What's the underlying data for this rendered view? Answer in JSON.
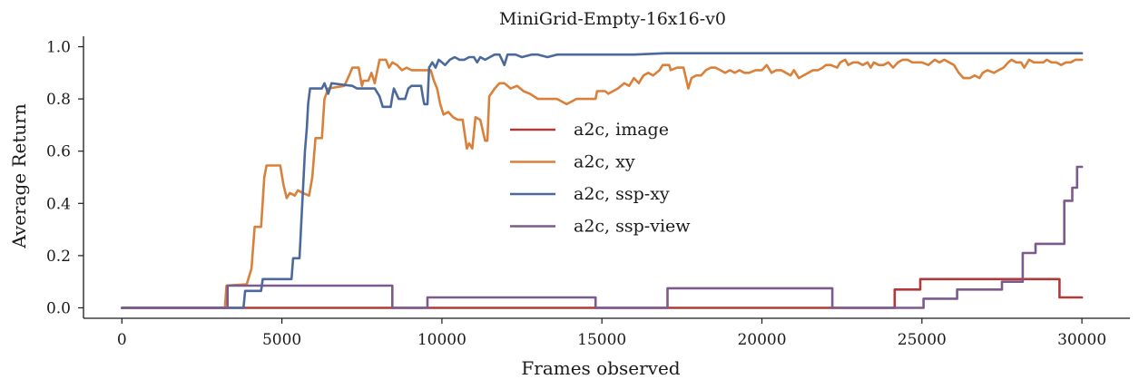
{
  "chart_data": {
    "type": "line",
    "title": "MiniGrid-Empty-16x16-v0",
    "xlabel": "Frames observed",
    "ylabel": "Average Return",
    "xlim": [
      -1200,
      31500
    ],
    "ylim": [
      -0.04,
      1.04
    ],
    "xticks": [
      0,
      5000,
      10000,
      15000,
      20000,
      25000,
      30000
    ],
    "xtick_labels": [
      "0",
      "5000",
      "10000",
      "15000",
      "20000",
      "25000",
      "30000"
    ],
    "yticks": [
      0.0,
      0.2,
      0.4,
      0.6,
      0.8,
      1.0
    ],
    "ytick_labels": [
      "0.0",
      "0.2",
      "0.4",
      "0.6",
      "0.8",
      "1.0"
    ],
    "grid": false,
    "legend_position": "center",
    "series": [
      {
        "name": "a2c, image",
        "color": "#b03a3a",
        "step": true,
        "points": [
          [
            0,
            0.0
          ],
          [
            24150,
            0.0
          ],
          [
            24150,
            0.07
          ],
          [
            24950,
            0.07
          ],
          [
            24950,
            0.11
          ],
          [
            29300,
            0.11
          ],
          [
            29300,
            0.04
          ],
          [
            30000,
            0.04
          ]
        ]
      },
      {
        "name": "a2c, xy",
        "color": "#d9803a",
        "step": false,
        "points": [
          [
            0,
            0.0
          ],
          [
            3220,
            0.0
          ],
          [
            3270,
            0.085
          ],
          [
            3900,
            0.09
          ],
          [
            4050,
            0.15
          ],
          [
            4150,
            0.31
          ],
          [
            4350,
            0.31
          ],
          [
            4450,
            0.5
          ],
          [
            4520,
            0.545
          ],
          [
            4950,
            0.545
          ],
          [
            5050,
            0.47
          ],
          [
            5150,
            0.42
          ],
          [
            5250,
            0.44
          ],
          [
            5400,
            0.43
          ],
          [
            5500,
            0.45
          ],
          [
            5650,
            0.44
          ],
          [
            5850,
            0.43
          ],
          [
            5950,
            0.5
          ],
          [
            6050,
            0.65
          ],
          [
            6250,
            0.65
          ],
          [
            6330,
            0.8
          ],
          [
            6450,
            0.84
          ],
          [
            6950,
            0.85
          ],
          [
            7100,
            0.89
          ],
          [
            7200,
            0.92
          ],
          [
            7400,
            0.92
          ],
          [
            7500,
            0.85
          ],
          [
            7550,
            0.87
          ],
          [
            7700,
            0.87
          ],
          [
            7800,
            0.9
          ],
          [
            7900,
            0.86
          ],
          [
            8050,
            0.95
          ],
          [
            8250,
            0.95
          ],
          [
            8350,
            0.92
          ],
          [
            8450,
            0.94
          ],
          [
            8600,
            0.93
          ],
          [
            8750,
            0.91
          ],
          [
            8900,
            0.92
          ],
          [
            9050,
            0.91
          ],
          [
            9350,
            0.91
          ],
          [
            9500,
            0.91
          ],
          [
            9650,
            0.91
          ],
          [
            9750,
            0.87
          ],
          [
            9850,
            0.84
          ],
          [
            9950,
            0.78
          ],
          [
            10050,
            0.74
          ],
          [
            10200,
            0.75
          ],
          [
            10350,
            0.73
          ],
          [
            10500,
            0.72
          ],
          [
            10650,
            0.72
          ],
          [
            10780,
            0.61
          ],
          [
            10850,
            0.63
          ],
          [
            10950,
            0.61
          ],
          [
            11050,
            0.73
          ],
          [
            11200,
            0.72
          ],
          [
            11350,
            0.64
          ],
          [
            11420,
            0.64
          ],
          [
            11480,
            0.81
          ],
          [
            11650,
            0.84
          ],
          [
            11800,
            0.86
          ],
          [
            11950,
            0.86
          ],
          [
            12150,
            0.84
          ],
          [
            12350,
            0.85
          ],
          [
            12550,
            0.83
          ],
          [
            12750,
            0.82
          ],
          [
            13000,
            0.8
          ],
          [
            13350,
            0.8
          ],
          [
            13600,
            0.8
          ],
          [
            13900,
            0.78
          ],
          [
            14200,
            0.8
          ],
          [
            14500,
            0.8
          ],
          [
            14800,
            0.8
          ],
          [
            14850,
            0.83
          ],
          [
            15100,
            0.83
          ],
          [
            15200,
            0.82
          ],
          [
            15500,
            0.84
          ],
          [
            15700,
            0.86
          ],
          [
            15850,
            0.85
          ],
          [
            16000,
            0.88
          ],
          [
            16150,
            0.86
          ],
          [
            16300,
            0.89
          ],
          [
            16450,
            0.9
          ],
          [
            16600,
            0.89
          ],
          [
            16800,
            0.91
          ],
          [
            16900,
            0.93
          ],
          [
            17100,
            0.93
          ],
          [
            17150,
            0.91
          ],
          [
            17350,
            0.92
          ],
          [
            17550,
            0.92
          ],
          [
            17700,
            0.84
          ],
          [
            17800,
            0.88
          ],
          [
            17950,
            0.89
          ],
          [
            18100,
            0.89
          ],
          [
            18250,
            0.91
          ],
          [
            18400,
            0.92
          ],
          [
            18550,
            0.92
          ],
          [
            18700,
            0.91
          ],
          [
            18850,
            0.9
          ],
          [
            19000,
            0.91
          ],
          [
            19150,
            0.9
          ],
          [
            19300,
            0.91
          ],
          [
            19450,
            0.9
          ],
          [
            19600,
            0.9
          ],
          [
            19800,
            0.91
          ],
          [
            20000,
            0.91
          ],
          [
            20150,
            0.93
          ],
          [
            20300,
            0.9
          ],
          [
            20450,
            0.91
          ],
          [
            20600,
            0.91
          ],
          [
            20750,
            0.9
          ],
          [
            20900,
            0.89
          ],
          [
            21000,
            0.91
          ],
          [
            21150,
            0.88
          ],
          [
            21300,
            0.89
          ],
          [
            21450,
            0.9
          ],
          [
            21600,
            0.91
          ],
          [
            21750,
            0.91
          ],
          [
            21900,
            0.92
          ],
          [
            22000,
            0.93
          ],
          [
            22150,
            0.93
          ],
          [
            22350,
            0.92
          ],
          [
            22450,
            0.94
          ],
          [
            22600,
            0.95
          ],
          [
            22700,
            0.93
          ],
          [
            22850,
            0.94
          ],
          [
            23000,
            0.94
          ],
          [
            23150,
            0.93
          ],
          [
            23300,
            0.94
          ],
          [
            23400,
            0.92
          ],
          [
            23500,
            0.94
          ],
          [
            23650,
            0.93
          ],
          [
            23800,
            0.93
          ],
          [
            23950,
            0.94
          ],
          [
            24100,
            0.92
          ],
          [
            24250,
            0.94
          ],
          [
            24400,
            0.95
          ],
          [
            24550,
            0.95
          ],
          [
            24700,
            0.94
          ],
          [
            24850,
            0.94
          ],
          [
            25000,
            0.94
          ],
          [
            25200,
            0.93
          ],
          [
            25400,
            0.95
          ],
          [
            25550,
            0.94
          ],
          [
            25700,
            0.95
          ],
          [
            25850,
            0.94
          ],
          [
            26000,
            0.93
          ],
          [
            26150,
            0.9
          ],
          [
            26300,
            0.88
          ],
          [
            26500,
            0.88
          ],
          [
            26650,
            0.89
          ],
          [
            26800,
            0.88
          ],
          [
            26900,
            0.9
          ],
          [
            27050,
            0.91
          ],
          [
            27250,
            0.9
          ],
          [
            27400,
            0.91
          ],
          [
            27550,
            0.92
          ],
          [
            27700,
            0.94
          ],
          [
            27800,
            0.95
          ],
          [
            27950,
            0.94
          ],
          [
            28100,
            0.94
          ],
          [
            28200,
            0.92
          ],
          [
            28350,
            0.95
          ],
          [
            28500,
            0.94
          ],
          [
            28650,
            0.94
          ],
          [
            28800,
            0.94
          ],
          [
            28900,
            0.95
          ],
          [
            29050,
            0.94
          ],
          [
            29200,
            0.94
          ],
          [
            29350,
            0.93
          ],
          [
            29500,
            0.94
          ],
          [
            29650,
            0.94
          ],
          [
            29800,
            0.95
          ],
          [
            30000,
            0.95
          ]
        ]
      },
      {
        "name": "a2c, ssp-xy",
        "color": "#4b6a9b",
        "step": false,
        "points": [
          [
            0,
            0.0
          ],
          [
            3800,
            0.0
          ],
          [
            3850,
            0.065
          ],
          [
            4350,
            0.065
          ],
          [
            4400,
            0.11
          ],
          [
            5300,
            0.11
          ],
          [
            5350,
            0.19
          ],
          [
            5550,
            0.19
          ],
          [
            5650,
            0.43
          ],
          [
            5720,
            0.6
          ],
          [
            5780,
            0.69
          ],
          [
            5820,
            0.78
          ],
          [
            5880,
            0.84
          ],
          [
            6250,
            0.84
          ],
          [
            6330,
            0.86
          ],
          [
            6450,
            0.82
          ],
          [
            6550,
            0.86
          ],
          [
            7200,
            0.85
          ],
          [
            7350,
            0.84
          ],
          [
            7900,
            0.84
          ],
          [
            8050,
            0.81
          ],
          [
            8150,
            0.77
          ],
          [
            8400,
            0.77
          ],
          [
            8450,
            0.81
          ],
          [
            8500,
            0.84
          ],
          [
            8650,
            0.8
          ],
          [
            8850,
            0.8
          ],
          [
            8950,
            0.84
          ],
          [
            9050,
            0.85
          ],
          [
            9350,
            0.85
          ],
          [
            9400,
            0.81
          ],
          [
            9450,
            0.78
          ],
          [
            9550,
            0.78
          ],
          [
            9600,
            0.92
          ],
          [
            9700,
            0.94
          ],
          [
            9800,
            0.92
          ],
          [
            9900,
            0.95
          ],
          [
            10000,
            0.94
          ],
          [
            10100,
            0.93
          ],
          [
            10250,
            0.95
          ],
          [
            10400,
            0.96
          ],
          [
            10550,
            0.95
          ],
          [
            10700,
            0.95
          ],
          [
            10850,
            0.96
          ],
          [
            11000,
            0.96
          ],
          [
            11100,
            0.94
          ],
          [
            11200,
            0.96
          ],
          [
            11350,
            0.95
          ],
          [
            11500,
            0.96
          ],
          [
            11650,
            0.97
          ],
          [
            11800,
            0.97
          ],
          [
            11950,
            0.93
          ],
          [
            12050,
            0.97
          ],
          [
            12300,
            0.97
          ],
          [
            12500,
            0.96
          ],
          [
            12800,
            0.97
          ],
          [
            13000,
            0.97
          ],
          [
            13300,
            0.96
          ],
          [
            13600,
            0.97
          ],
          [
            14000,
            0.97
          ],
          [
            14500,
            0.97
          ],
          [
            15000,
            0.97
          ],
          [
            15500,
            0.97
          ],
          [
            16000,
            0.97
          ],
          [
            17000,
            0.975
          ],
          [
            18000,
            0.975
          ],
          [
            19000,
            0.975
          ],
          [
            20000,
            0.975
          ],
          [
            22000,
            0.975
          ],
          [
            24000,
            0.975
          ],
          [
            26000,
            0.975
          ],
          [
            28000,
            0.975
          ],
          [
            30000,
            0.975
          ]
        ]
      },
      {
        "name": "a2c, ssp-view",
        "color": "#7d5a8c",
        "step": true,
        "points": [
          [
            0,
            0.0
          ],
          [
            3300,
            0.0
          ],
          [
            3300,
            0.085
          ],
          [
            8450,
            0.085
          ],
          [
            8450,
            0.0
          ],
          [
            9550,
            0.0
          ],
          [
            9550,
            0.04
          ],
          [
            14800,
            0.04
          ],
          [
            14800,
            0.0
          ],
          [
            17050,
            0.0
          ],
          [
            17050,
            0.075
          ],
          [
            22200,
            0.075
          ],
          [
            22200,
            0.0
          ],
          [
            25050,
            0.0
          ],
          [
            25050,
            0.035
          ],
          [
            26100,
            0.035
          ],
          [
            26100,
            0.07
          ],
          [
            27500,
            0.07
          ],
          [
            27500,
            0.1
          ],
          [
            28150,
            0.1
          ],
          [
            28150,
            0.21
          ],
          [
            28550,
            0.21
          ],
          [
            28550,
            0.245
          ],
          [
            29450,
            0.245
          ],
          [
            29450,
            0.41
          ],
          [
            29700,
            0.41
          ],
          [
            29700,
            0.46
          ],
          [
            29850,
            0.46
          ],
          [
            29850,
            0.54
          ],
          [
            30000,
            0.54
          ]
        ]
      }
    ]
  }
}
